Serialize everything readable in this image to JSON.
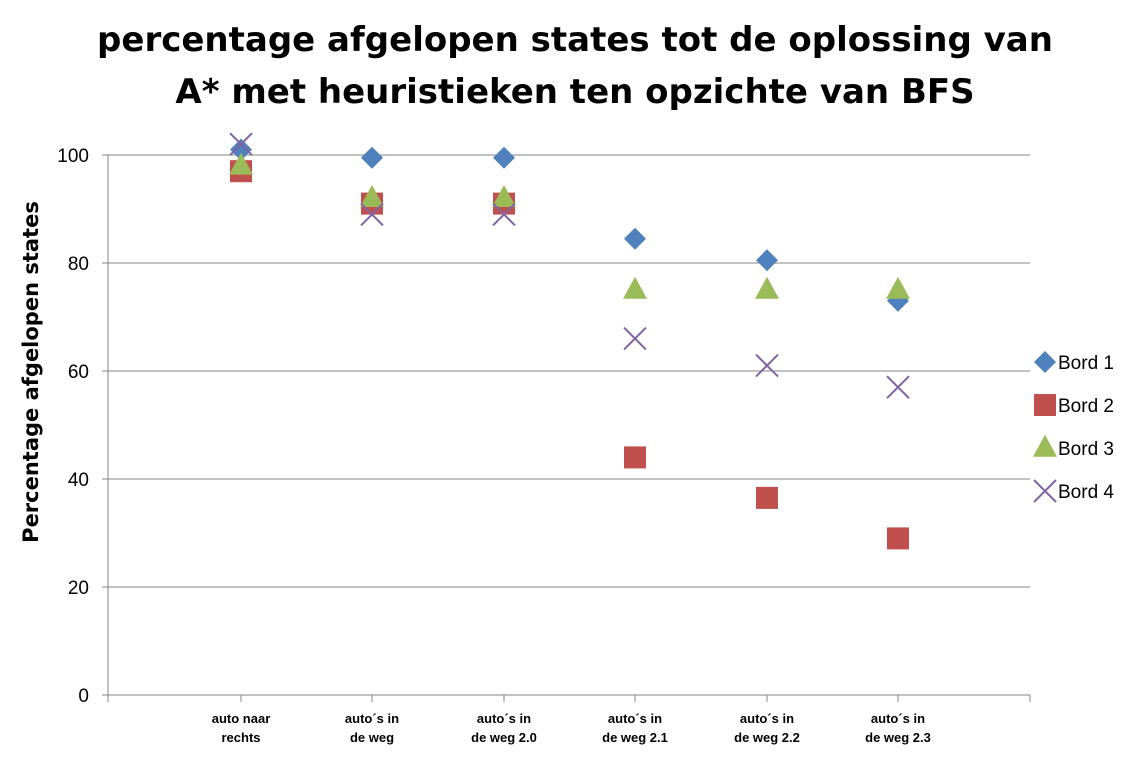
{
  "chart_data": {
    "type": "scatter",
    "title_lines": [
      "percentage afgelopen states tot de oplossing van",
      "A* met heuristieken ten opzichte van BFS"
    ],
    "xlabel": "",
    "ylabel": "Percentage afgelopen states",
    "ylim": [
      0,
      100
    ],
    "yticks": [
      0,
      20,
      40,
      60,
      80,
      100
    ],
    "grid": true,
    "legend_position": "right",
    "categories": [
      [
        "auto naar",
        "rechts"
      ],
      [
        "auto´s in",
        "de weg"
      ],
      [
        "auto´s in",
        "de weg 2.0"
      ],
      [
        "auto´s in",
        "de weg 2.1"
      ],
      [
        "auto´s in",
        "de weg 2.2"
      ],
      [
        "auto´s in",
        "de weg 2.3"
      ]
    ],
    "series": [
      {
        "name": "Bord 1",
        "marker": "diamond",
        "color": "#4f81bd",
        "values": [
          101,
          99.5,
          99.5,
          84.5,
          80.5,
          73
        ]
      },
      {
        "name": "Bord 2",
        "marker": "square",
        "color": "#c0504d",
        "values": [
          97,
          91,
          91,
          44,
          36.5,
          29
        ]
      },
      {
        "name": "Bord 3",
        "marker": "triangle",
        "color": "#9bbb59",
        "values": [
          98,
          92,
          92,
          75,
          75,
          75
        ]
      },
      {
        "name": "Bord 4",
        "marker": "x",
        "color": "#8064a2",
        "values": [
          102,
          89,
          89,
          66,
          61,
          57
        ]
      }
    ]
  }
}
